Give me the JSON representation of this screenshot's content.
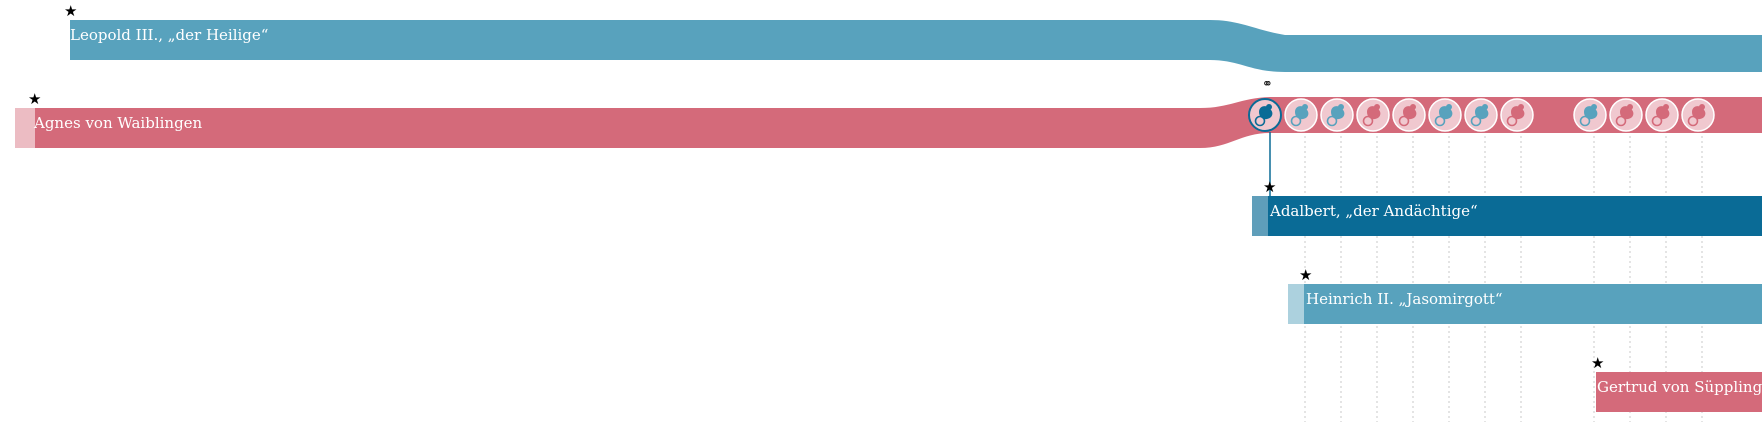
{
  "people": [
    {
      "id": "leopold",
      "name": "Leopold III., „der Heilige“",
      "gender": "male",
      "color": "#58a2bd",
      "birth_marker": "★"
    },
    {
      "id": "agnes",
      "name": "Agnes von Waiblingen",
      "gender": "female",
      "color": "#d46a7a",
      "birth_marker": "★"
    },
    {
      "id": "adalbert",
      "name": "Adalbert, „der Andächtige“",
      "gender": "male",
      "color": "#0a6b96",
      "birth_marker": "★"
    },
    {
      "id": "heinrich",
      "name": "Heinrich II. „Jasomirgott“",
      "gender": "male",
      "color": "#58a2bd",
      "birth_marker": "★"
    },
    {
      "id": "gertrud",
      "name": "Gertrud von Süpplingenburg",
      "gender": "female",
      "color": "#d46a7a",
      "birth_marker": "★"
    }
  ],
  "marriage": {
    "icon": "⚭",
    "icon_name": "wedding-rings-icon"
  },
  "children": [
    {
      "gender": "male",
      "highlighted": true
    },
    {
      "gender": "male",
      "highlighted": false
    },
    {
      "gender": "male",
      "highlighted": false
    },
    {
      "gender": "female",
      "highlighted": false
    },
    {
      "gender": "female",
      "highlighted": false
    },
    {
      "gender": "male",
      "highlighted": false
    },
    {
      "gender": "male",
      "highlighted": false
    },
    {
      "gender": "female",
      "highlighted": false
    },
    {
      "gender": "male",
      "highlighted": false
    },
    {
      "gender": "female",
      "highlighted": false
    },
    {
      "gender": "female",
      "highlighted": false
    },
    {
      "gender": "female",
      "highlighted": false
    }
  ],
  "colors": {
    "male": "#58a2bd",
    "female": "#d46a7a",
    "male_dark": "#0a6b96",
    "child_bg": "#f0c8cf",
    "connector": "#0a6b96",
    "dotted": "#c9c9c9"
  }
}
